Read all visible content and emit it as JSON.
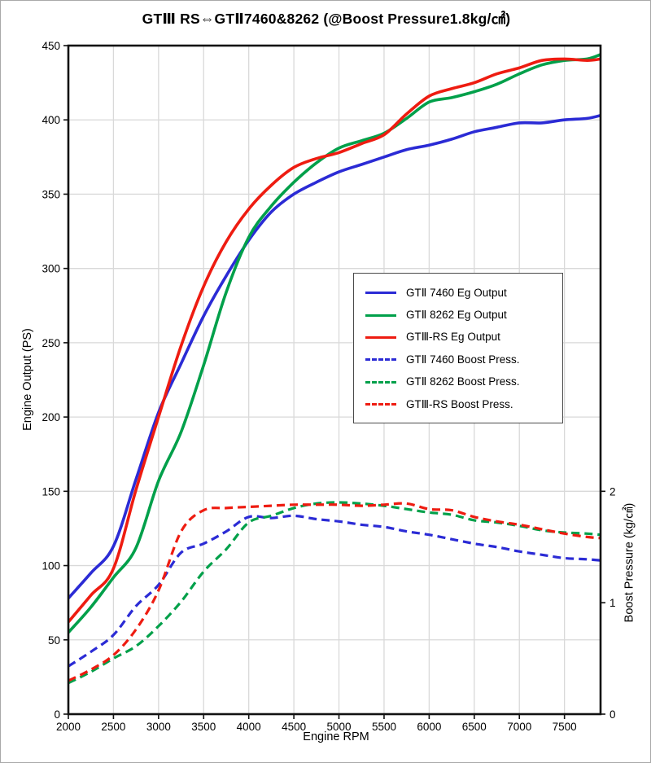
{
  "title": "GTⅢ RS⇔GTⅡ7460&8262 (@Boost Pressure1.8kg/㎠)",
  "axes": {
    "x": {
      "label": "Engine RPM",
      "ticks": [
        2000,
        2500,
        3000,
        3500,
        4000,
        4500,
        5000,
        5500,
        6000,
        6500,
        7000,
        7500
      ]
    },
    "y_left": {
      "label": "Engine Output (PS)",
      "ticks": [
        0,
        50,
        100,
        150,
        200,
        250,
        300,
        350,
        400,
        450
      ]
    },
    "y_right": {
      "label": "Boost Pressure (kg/㎠)",
      "ticks": [
        0,
        1,
        2
      ]
    }
  },
  "colors": {
    "blue": "#2b2bd5",
    "green": "#00a04a",
    "red": "#ee1c11",
    "grid": "#d9d9d9",
    "frame": "#111111"
  },
  "chart_data": {
    "type": "line",
    "title": "GTⅢ RS⇔GTⅡ7460&8262 (@Boost Pressure1.8kg/㎠)",
    "xlabel": "Engine RPM",
    "ylabel_left": "Engine Output (PS)",
    "ylabel_right": "Boost Pressure (kg/㎠)",
    "xlim": [
      2000,
      7900
    ],
    "ylim_left": [
      0,
      450
    ],
    "ylim_right": [
      0,
      6
    ],
    "grid": true,
    "legend_position": "center-right",
    "x": [
      2000,
      2250,
      2500,
      2750,
      3000,
      3250,
      3500,
      3750,
      4000,
      4250,
      4500,
      4750,
      5000,
      5250,
      5500,
      5750,
      6000,
      6250,
      6500,
      6750,
      7000,
      7250,
      7500,
      7750,
      7900
    ],
    "series": [
      {
        "name": "GTⅡ 7460 Eg Output",
        "color": "#2b2bd5",
        "style": "solid",
        "axis": "left",
        "unit": "PS",
        "values": [
          78,
          95,
          113,
          158,
          203,
          236,
          268,
          295,
          319,
          338,
          350,
          358,
          365,
          370,
          375,
          380,
          383,
          387,
          392,
          395,
          398,
          398,
          400,
          401,
          403
        ]
      },
      {
        "name": "GTⅡ 8262 Eg Output",
        "color": "#00a04a",
        "style": "solid",
        "axis": "left",
        "unit": "PS",
        "values": [
          55,
          72,
          92,
          112,
          157,
          190,
          235,
          284,
          321,
          342,
          358,
          371,
          381,
          386,
          391,
          401,
          412,
          415,
          419,
          424,
          431,
          437,
          440,
          441,
          444
        ]
      },
      {
        "name": "GTⅢ-RS Eg Output",
        "color": "#ee1c11",
        "style": "solid",
        "axis": "left",
        "unit": "PS",
        "values": [
          62,
          80,
          98,
          151,
          200,
          248,
          288,
          318,
          340,
          356,
          368,
          374,
          378,
          384,
          390,
          404,
          416,
          421,
          425,
          431,
          435,
          440,
          441,
          440,
          441
        ]
      },
      {
        "name": "GTⅡ 7460 Boost Press.",
        "color": "#2b2bd5",
        "style": "dashed",
        "axis": "right",
        "unit": "kg/cm2",
        "values": [
          0.43,
          0.56,
          0.71,
          0.97,
          1.16,
          1.45,
          1.53,
          1.64,
          1.77,
          1.76,
          1.78,
          1.75,
          1.73,
          1.7,
          1.68,
          1.64,
          1.61,
          1.57,
          1.53,
          1.5,
          1.46,
          1.43,
          1.4,
          1.39,
          1.38
        ]
      },
      {
        "name": "GTⅡ 8262 Boost Press.",
        "color": "#00a04a",
        "style": "dashed",
        "axis": "right",
        "unit": "kg/cm2",
        "values": [
          0.28,
          0.38,
          0.5,
          0.61,
          0.79,
          1.01,
          1.28,
          1.48,
          1.72,
          1.78,
          1.85,
          1.89,
          1.9,
          1.89,
          1.87,
          1.84,
          1.81,
          1.79,
          1.74,
          1.72,
          1.69,
          1.65,
          1.63,
          1.62,
          1.61
        ]
      },
      {
        "name": "GTⅢ-RS Boost Press.",
        "color": "#ee1c11",
        "style": "dashed",
        "axis": "right",
        "unit": "kg/cm2",
        "values": [
          0.3,
          0.4,
          0.53,
          0.76,
          1.11,
          1.64,
          1.83,
          1.85,
          1.86,
          1.87,
          1.88,
          1.88,
          1.88,
          1.87,
          1.88,
          1.89,
          1.84,
          1.83,
          1.77,
          1.73,
          1.7,
          1.66,
          1.62,
          1.59,
          1.58
        ]
      }
    ]
  }
}
